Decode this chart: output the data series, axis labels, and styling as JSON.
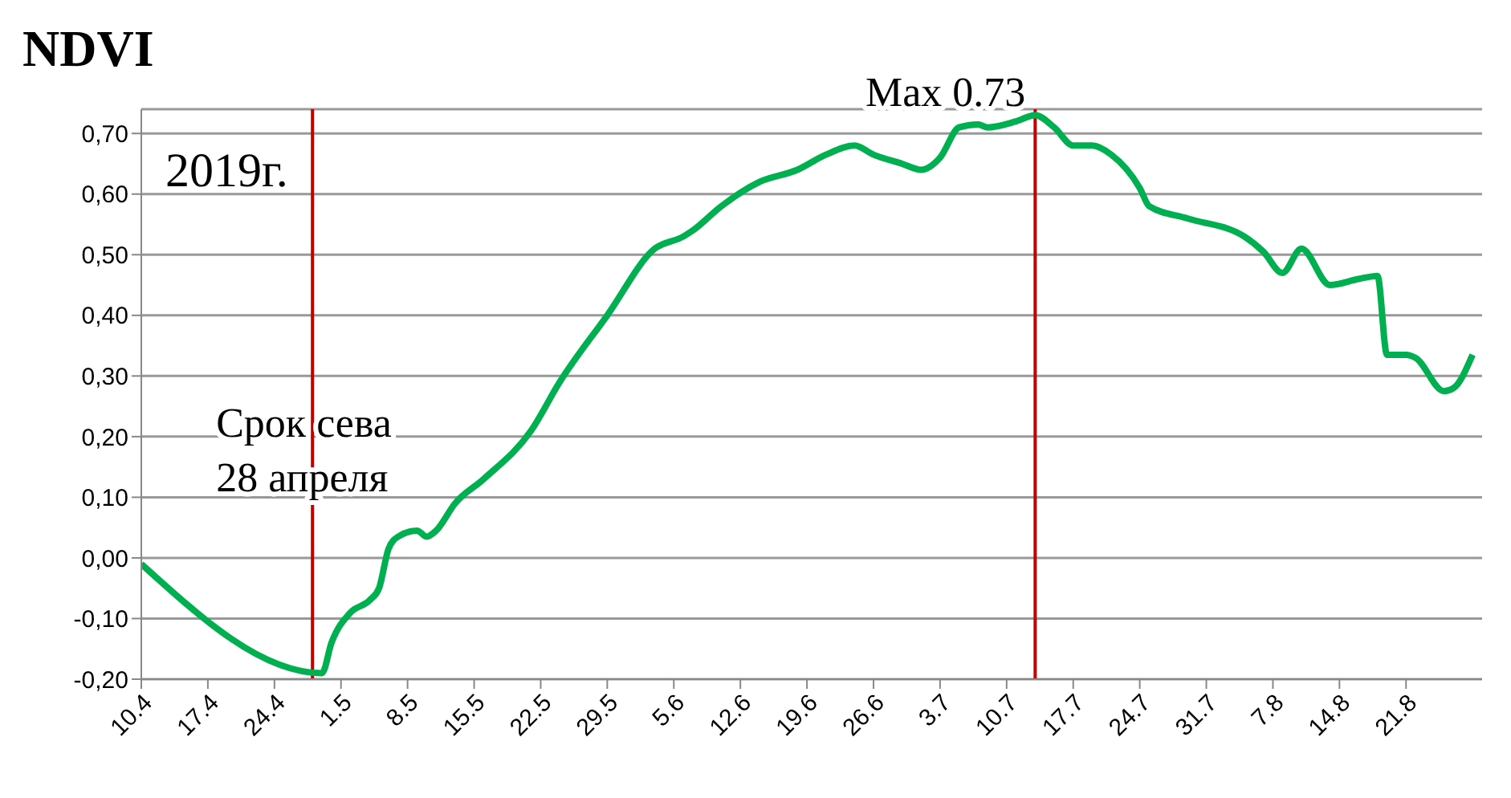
{
  "chart_data": {
    "type": "line",
    "ylabel": "NDVI",
    "annotations": [
      "2019г.",
      {
        "text": "Срок сева\n28 апреля",
        "x": "--04-28",
        "y": 0.2
      },
      {
        "text": "Max 0.73",
        "x": "--07-13",
        "y": 0.73
      }
    ],
    "x": [
      "--04-10",
      "--04-29",
      "--04-30",
      "--05-02",
      "--05-04",
      "--05-05",
      "--05-06",
      "--05-07",
      "--05-09",
      "--05-10",
      "--05-11",
      "--05-13",
      "--05-16",
      "--05-21",
      "--05-24",
      "--05-29",
      "--06-03",
      "--06-06",
      "--06-07",
      "--06-10",
      "--06-14",
      "--06-18",
      "--06-21",
      "--06-24",
      "--06-26",
      "--06-29",
      "--07-01",
      "--07-03",
      "--07-05",
      "--07-07",
      "--07-08",
      "--07-11",
      "--07-13",
      "--07-15",
      "--07-17",
      "--07-19",
      "--07-21",
      "--07-24",
      "--07-25",
      "--07-29",
      "--08-04",
      "--08-06",
      "--08-08",
      "--08-10",
      "--08-13",
      "--08-16",
      "--08-18",
      "--08-19",
      "--08-21",
      "--08-22",
      "--08-25",
      "--08-26",
      "--08-28"
    ],
    "series": [
      {
        "color": "#00b050",
        "values": [
          -0.01,
          -0.19,
          -0.14,
          -0.09,
          -0.07,
          -0.05,
          0.015,
          0.035,
          0.045,
          0.035,
          0.045,
          0.09,
          0.13,
          0.21,
          0.29,
          0.4,
          0.51,
          0.53,
          0.54,
          0.58,
          0.62,
          0.64,
          0.665,
          0.68,
          0.665,
          0.65,
          0.64,
          0.66,
          0.71,
          0.715,
          0.71,
          0.72,
          0.73,
          0.71,
          0.68,
          0.68,
          0.665,
          0.61,
          0.58,
          0.56,
          0.53,
          0.505,
          0.47,
          0.51,
          0.45,
          0.46,
          0.465,
          0.335,
          0.335,
          0.33,
          0.275,
          0.28,
          0.335
        ]
      }
    ],
    "xlim": [
      "--04-10",
      "--08-29"
    ],
    "xticks": [
      {
        "value": "--04-10",
        "label": "10.4"
      },
      {
        "value": "--04-17",
        "label": "17.4"
      },
      {
        "value": "--04-24",
        "label": "24.4"
      },
      {
        "value": "--05-01",
        "label": "1.5"
      },
      {
        "value": "--05-08",
        "label": "8.5"
      },
      {
        "value": "--05-15",
        "label": "15.5"
      },
      {
        "value": "--05-22",
        "label": "22.5"
      },
      {
        "value": "--05-29",
        "label": "29.5"
      },
      {
        "value": "--06-05",
        "label": "5.6"
      },
      {
        "value": "--06-12",
        "label": "12.6"
      },
      {
        "value": "--06-19",
        "label": "19.6"
      },
      {
        "value": "--06-26",
        "label": "26.6"
      },
      {
        "value": "--07-03",
        "label": "3.7"
      },
      {
        "value": "--07-10",
        "label": "10.7"
      },
      {
        "value": "--07-17",
        "label": "17.7"
      },
      {
        "value": "--07-24",
        "label": "24.7"
      },
      {
        "value": "--07-31",
        "label": "31.7"
      },
      {
        "value": "--08-07",
        "label": "7.8"
      },
      {
        "value": "--08-14",
        "label": "14.8"
      },
      {
        "value": "--08-21",
        "label": "21.8"
      }
    ],
    "ylim": [
      -0.2,
      0.74
    ],
    "yticks": [
      {
        "value": -0.2,
        "label": "-0,20"
      },
      {
        "value": -0.1,
        "label": "-0,10"
      },
      {
        "value": 0,
        "label": "0,00"
      },
      {
        "value": 0.1,
        "label": "0,10"
      },
      {
        "value": 0.2,
        "label": "0,20"
      },
      {
        "value": 0.3,
        "label": "0,30"
      },
      {
        "value": 0.4,
        "label": "0,40"
      },
      {
        "value": 0.5,
        "label": "0,50"
      },
      {
        "value": 0.6,
        "label": "0,60"
      },
      {
        "value": 0.7,
        "label": "0,70"
      }
    ],
    "grid": "y",
    "legend": false,
    "marker": "none",
    "line_style": "solid",
    "ref_lines": [
      {
        "axis": "x",
        "value": "--04-28",
        "color": "#c00000"
      },
      {
        "axis": "x",
        "value": "--07-13",
        "color": "#c00000"
      }
    ]
  }
}
